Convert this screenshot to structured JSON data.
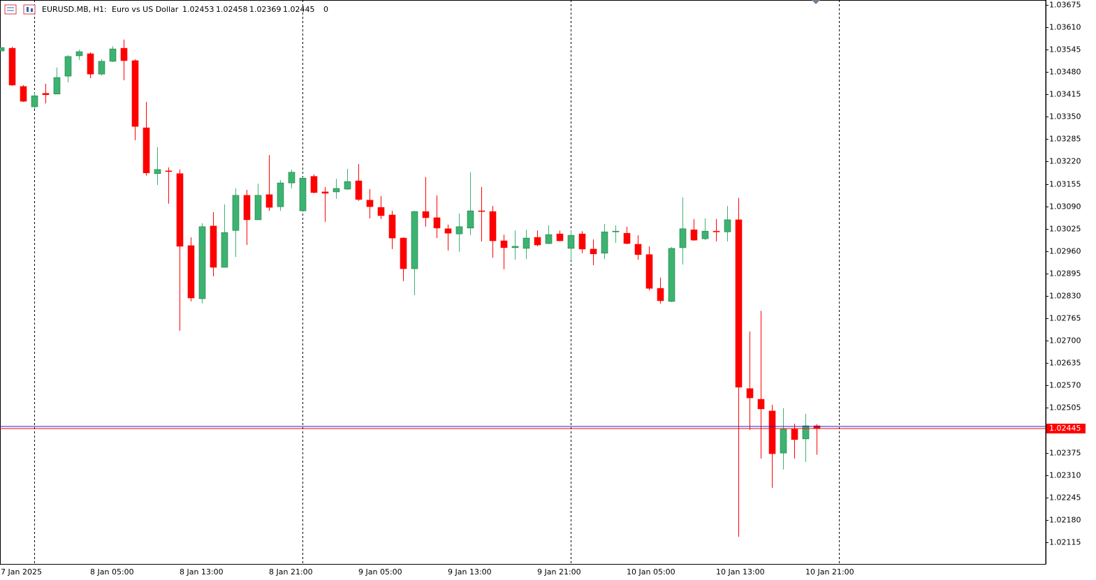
{
  "header": {
    "symbol": "EURUSD.MB, H1:",
    "description": "Euro vs US Dollar",
    "value": 0
  },
  "chart_data": {
    "type": "candlestick",
    "categories": [
      "7 Jan 2025",
      null,
      null,
      null,
      null,
      null,
      null,
      null,
      "8 Jan 05:00",
      null,
      null,
      null,
      null,
      null,
      null,
      null,
      "8 Jan 13:00",
      null,
      null,
      null,
      null,
      null,
      null,
      null,
      "8 Jan 21:00",
      null,
      null,
      null,
      null,
      null,
      null,
      null,
      "9 Jan 05:00",
      null,
      null,
      null,
      null,
      null,
      null,
      null,
      "9 Jan 13:00",
      null,
      null,
      null,
      null,
      null,
      null,
      null,
      "9 Jan 21:00",
      null,
      null,
      null,
      null,
      null,
      null,
      null,
      "10 Jan 05:00",
      null,
      null,
      null,
      null,
      null,
      null,
      null,
      "10 Jan 13:00",
      null,
      null,
      null,
      null,
      null,
      null,
      null,
      "10 Jan 21:00",
      null
    ],
    "open": [
      1.03541,
      1.03549,
      1.03438,
      1.03379,
      1.03418,
      1.03416,
      1.03468,
      1.03527,
      1.03533,
      1.03474,
      1.03511,
      1.03549,
      1.03513,
      1.03318,
      1.03185,
      1.03193,
      1.03185,
      1.02976,
      1.02822,
      1.03033,
      1.02913,
      1.0302,
      1.03122,
      1.03051,
      1.03124,
      1.03089,
      1.03158,
      1.03077,
      1.03177,
      1.03132,
      1.03132,
      1.0314,
      1.03164,
      1.03108,
      1.03087,
      1.03065,
      1.02998,
      1.02909,
      1.03075,
      1.03057,
      1.03025,
      1.0301,
      1.03027,
      1.03077,
      1.03075,
      1.0299,
      1.0297,
      1.02968,
      1.03,
      1.02982,
      1.0301,
      1.02968,
      1.0301,
      1.02966,
      1.02954,
      1.03016,
      1.03012,
      1.0298,
      1.0295,
      1.02852,
      1.02814,
      1.0297,
      1.03022,
      1.02996,
      1.03018,
      1.03016,
      1.03051,
      1.02561,
      1.0253,
      1.02496,
      1.02374,
      1.02443,
      1.02415,
      1.02453
    ],
    "high": [
      1.03551,
      1.03553,
      1.03442,
      1.0342,
      1.03446,
      1.03493,
      1.03529,
      1.03545,
      1.03537,
      1.03517,
      1.03555,
      1.03574,
      1.03517,
      1.03393,
      1.03262,
      1.03203,
      1.03197,
      1.03,
      1.03041,
      1.03073,
      1.03096,
      1.03142,
      1.03138,
      1.03156,
      1.03239,
      1.03166,
      1.03197,
      1.03175,
      1.03183,
      1.03146,
      1.0317,
      1.03199,
      1.03213,
      1.0314,
      1.0312,
      1.03077,
      1.03,
      1.03077,
      1.03175,
      1.03122,
      1.03037,
      1.03069,
      1.03189,
      1.03146,
      1.03091,
      1.03008,
      1.0302,
      1.03022,
      1.0302,
      1.03035,
      1.0302,
      1.0302,
      1.03018,
      1.02994,
      1.03039,
      1.03035,
      1.03031,
      1.03006,
      1.02974,
      1.02883,
      1.02972,
      1.03116,
      1.03053,
      1.03055,
      1.03053,
      1.03091,
      1.03114,
      1.02727,
      1.02787,
      1.02514,
      1.02504,
      1.02459,
      1.02488,
      1.02458
    ],
    "low": [
      1.03541,
      1.0344,
      1.03393,
      1.03373,
      1.03389,
      1.03416,
      1.0345,
      1.03515,
      1.03462,
      1.0347,
      1.03509,
      1.03456,
      1.03282,
      1.03179,
      1.03152,
      1.03098,
      1.02729,
      1.02814,
      1.02808,
      1.02887,
      1.02913,
      1.02943,
      1.02978,
      1.03051,
      1.03077,
      1.03077,
      1.03142,
      1.03077,
      1.03128,
      1.03045,
      1.03112,
      1.03138,
      1.03106,
      1.03055,
      1.03053,
      1.02966,
      1.02873,
      1.02832,
      1.03031,
      1.02998,
      1.02962,
      1.02958,
      1.03006,
      1.02988,
      1.02941,
      1.02907,
      1.02935,
      1.02937,
      1.02974,
      1.0298,
      1.02988,
      1.02933,
      1.02954,
      1.02919,
      1.02937,
      1.02984,
      1.0298,
      1.02935,
      1.02846,
      1.02808,
      1.02812,
      1.02921,
      1.0299,
      1.02992,
      1.02988,
      1.02988,
      1.02131,
      1.02441,
      1.02358,
      1.02273,
      1.02326,
      1.02358,
      1.02348,
      1.02369
    ],
    "close": [
      1.03551,
      1.03442,
      1.03395,
      1.03411,
      1.03414,
      1.03464,
      1.03525,
      1.03539,
      1.03474,
      1.03511,
      1.03547,
      1.03513,
      1.03322,
      1.03187,
      1.03197,
      1.03191,
      1.02974,
      1.02824,
      1.03031,
      1.02913,
      1.03014,
      1.03122,
      1.03051,
      1.03122,
      1.03087,
      1.03158,
      1.03189,
      1.03172,
      1.0313,
      1.03128,
      1.03142,
      1.03162,
      1.0311,
      1.03089,
      1.03063,
      1.02998,
      1.02909,
      1.03075,
      1.03057,
      1.03027,
      1.03012,
      1.03031,
      1.03077,
      1.03075,
      1.0299,
      1.0297,
      1.02974,
      1.02998,
      1.02978,
      1.03008,
      1.0299,
      1.03006,
      1.02966,
      1.02952,
      1.03016,
      1.03018,
      1.02982,
      1.0295,
      1.02852,
      1.02816,
      1.02968,
      1.03025,
      1.02992,
      1.03018,
      1.03016,
      1.03051,
      1.02565,
      1.02534,
      1.02502,
      1.02372,
      1.02443,
      1.02413,
      1.02453,
      1.02445
    ],
    "up_color": "#3cb371",
    "down_color": "#ff0000",
    "ylim": [
      1.02052,
      1.03689
    ],
    "yticks": [
      1.02115,
      {
        "value": 1.0218,
        "label": "1.02180"
      },
      1.02245,
      {
        "value": 1.0231,
        "label": "1.02310"
      },
      1.02375,
      1.02505,
      {
        "value": 1.0257,
        "label": "1.02570"
      },
      1.02635,
      {
        "value": 1.027,
        "label": "1.02700"
      },
      1.02765,
      {
        "value": 1.0283,
        "label": "1.02830"
      },
      1.02895,
      {
        "value": 1.0296,
        "label": "1.02960"
      },
      1.03025,
      {
        "value": 1.0309,
        "label": "1.03090"
      },
      1.03155,
      {
        "value": 1.0322,
        "label": "1.03220"
      },
      1.03285,
      {
        "value": 1.0335,
        "label": "1.03350"
      },
      1.03415,
      {
        "value": 1.0348,
        "label": "1.03480"
      },
      1.03545,
      {
        "value": 1.0361,
        "label": "1.03610"
      },
      1.03675
    ],
    "bid": 1.02445,
    "bid_color": "#ff0000",
    "ask": 1.02451,
    "ask_color": "#2020c0",
    "period_separators": true
  }
}
